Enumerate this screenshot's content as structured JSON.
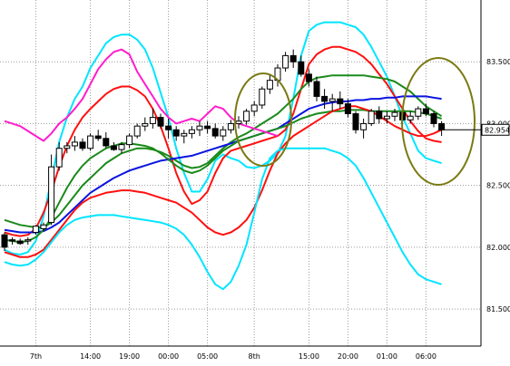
{
  "chart_data": {
    "type": "candlestick",
    "grid": true,
    "y_ticks": [
      "83.500",
      "83.000",
      "82.500",
      "82.000",
      "81.500"
    ],
    "y_tick_values": [
      83.5,
      83.0,
      82.5,
      82.0,
      81.5
    ],
    "ylim": [
      81.2,
      84.0
    ],
    "x_ticks": [
      {
        "label": "7th",
        "i": 4
      },
      {
        "label": "14:00",
        "i": 11
      },
      {
        "label": "19:00",
        "i": 16
      },
      {
        "label": "00:00",
        "i": 21
      },
      {
        "label": "05:00",
        "i": 26
      },
      {
        "label": "8th",
        "i": 32
      },
      {
        "label": "15:00",
        "i": 39
      },
      {
        "label": "20:00",
        "i": 44
      },
      {
        "label": "01:00",
        "i": 49
      },
      {
        "label": "06:00",
        "i": 54
      }
    ],
    "last_price": "82.954",
    "candles": [
      [
        82.1,
        82.12,
        81.97,
        82.0
      ],
      [
        82.06,
        82.08,
        82.02,
        82.05
      ],
      [
        82.05,
        82.07,
        82.02,
        82.03
      ],
      [
        82.05,
        82.08,
        82.02,
        82.06
      ],
      [
        82.12,
        82.18,
        82.1,
        82.17
      ],
      [
        82.15,
        82.2,
        82.13,
        82.18
      ],
      [
        82.2,
        82.75,
        82.18,
        82.65
      ],
      [
        82.65,
        82.85,
        82.62,
        82.8
      ],
      [
        82.8,
        82.85,
        82.76,
        82.82
      ],
      [
        82.82,
        82.9,
        82.78,
        82.85
      ],
      [
        82.85,
        82.88,
        82.78,
        82.8
      ],
      [
        82.8,
        82.92,
        82.78,
        82.9
      ],
      [
        82.9,
        82.95,
        82.86,
        82.88
      ],
      [
        82.88,
        82.93,
        82.8,
        82.82
      ],
      [
        82.82,
        82.85,
        82.78,
        82.79
      ],
      [
        82.79,
        82.85,
        82.76,
        82.83
      ],
      [
        82.83,
        82.92,
        82.8,
        82.9
      ],
      [
        82.9,
        83.0,
        82.88,
        82.98
      ],
      [
        82.98,
        83.05,
        82.94,
        83.0
      ],
      [
        83.0,
        83.12,
        82.96,
        83.05
      ],
      [
        83.05,
        83.08,
        82.96,
        82.98
      ],
      [
        82.98,
        83.04,
        82.88,
        82.95
      ],
      [
        82.95,
        82.98,
        82.86,
        82.9
      ],
      [
        82.9,
        82.95,
        82.84,
        82.92
      ],
      [
        82.92,
        82.98,
        82.88,
        82.95
      ],
      [
        82.95,
        83.02,
        82.9,
        82.98
      ],
      [
        82.98,
        83.02,
        82.92,
        82.96
      ],
      [
        82.96,
        83.0,
        82.88,
        82.9
      ],
      [
        82.9,
        82.98,
        82.86,
        82.95
      ],
      [
        82.95,
        83.03,
        82.92,
        83.0
      ],
      [
        83.0,
        83.06,
        82.96,
        83.02
      ],
      [
        83.02,
        83.12,
        82.99,
        83.1
      ],
      [
        83.1,
        83.18,
        83.06,
        83.15
      ],
      [
        83.15,
        83.3,
        83.12,
        83.28
      ],
      [
        83.28,
        83.4,
        83.24,
        83.35
      ],
      [
        83.35,
        83.48,
        83.3,
        83.45
      ],
      [
        83.45,
        83.58,
        83.42,
        83.55
      ],
      [
        83.55,
        83.6,
        83.45,
        83.5
      ],
      [
        83.5,
        83.55,
        83.38,
        83.4
      ],
      [
        83.4,
        83.44,
        83.3,
        83.34
      ],
      [
        83.34,
        83.38,
        83.18,
        83.22
      ],
      [
        83.22,
        83.28,
        83.12,
        83.18
      ],
      [
        83.18,
        83.24,
        83.1,
        83.2
      ],
      [
        83.2,
        83.26,
        83.12,
        83.16
      ],
      [
        83.16,
        83.2,
        83.05,
        83.08
      ],
      [
        83.08,
        83.1,
        82.92,
        82.95
      ],
      [
        82.95,
        83.04,
        82.88,
        83.0
      ],
      [
        83.0,
        83.12,
        82.98,
        83.1
      ],
      [
        83.1,
        83.14,
        83.0,
        83.04
      ],
      [
        83.04,
        83.1,
        83.0,
        83.06
      ],
      [
        83.06,
        83.12,
        83.02,
        83.09
      ],
      [
        83.09,
        83.11,
        83.01,
        83.03
      ],
      [
        83.03,
        83.1,
        83.0,
        83.06
      ],
      [
        83.06,
        83.14,
        83.03,
        83.12
      ],
      [
        83.12,
        83.16,
        83.06,
        83.08
      ],
      [
        83.08,
        83.1,
        82.97,
        83.0
      ],
      [
        83.0,
        83.02,
        82.9,
        82.95
      ]
    ],
    "series": [
      {
        "color": "#00e5ff",
        "values": [
          81.98,
          81.95,
          81.94,
          81.96,
          82.05,
          82.25,
          82.55,
          82.85,
          83.05,
          83.2,
          83.3,
          83.45,
          83.55,
          83.65,
          83.7,
          83.72,
          83.72,
          83.68,
          83.6,
          83.45,
          83.25,
          83.05,
          82.8,
          82.6,
          82.45,
          82.45,
          82.55,
          82.7,
          82.75,
          82.72,
          82.7,
          82.65,
          82.64,
          82.66,
          82.7,
          82.76,
          82.9,
          83.2,
          83.55,
          83.75,
          83.8,
          83.82,
          83.82,
          83.82,
          83.8,
          83.78,
          83.72,
          83.62,
          83.5,
          83.38,
          83.22,
          83.05,
          82.92,
          82.78,
          82.72,
          82.7,
          82.68
        ]
      },
      {
        "color": "#ff1010",
        "values": [
          82.12,
          82.1,
          82.09,
          82.1,
          82.15,
          82.28,
          82.45,
          82.65,
          82.82,
          82.95,
          83.05,
          83.12,
          83.18,
          83.24,
          83.28,
          83.3,
          83.3,
          83.27,
          83.22,
          83.12,
          82.98,
          82.8,
          82.6,
          82.45,
          82.35,
          82.38,
          82.45,
          82.6,
          82.72,
          82.78,
          82.8,
          82.82,
          82.84,
          82.86,
          82.88,
          82.9,
          82.95,
          83.08,
          83.28,
          83.48,
          83.56,
          83.6,
          83.62,
          83.62,
          83.6,
          83.58,
          83.54,
          83.48,
          83.4,
          83.32,
          83.22,
          83.12,
          83.02,
          82.94,
          82.88,
          82.86,
          82.85
        ]
      },
      {
        "color": "#1a8a1a",
        "values": [
          82.22,
          82.2,
          82.18,
          82.17,
          82.16,
          82.16,
          82.2,
          82.26,
          82.34,
          82.42,
          82.5,
          82.56,
          82.62,
          82.68,
          82.72,
          82.76,
          82.78,
          82.8,
          82.8,
          82.79,
          82.77,
          82.74,
          82.7,
          82.66,
          82.64,
          82.65,
          82.68,
          82.74,
          82.8,
          82.85,
          82.89,
          82.92,
          82.96,
          83.0,
          83.04,
          83.08,
          83.14,
          83.2,
          83.28,
          83.34,
          83.37,
          83.38,
          83.39,
          83.39,
          83.39,
          83.39,
          83.39,
          83.38,
          83.37,
          83.36,
          83.34,
          83.3,
          83.26,
          83.2,
          83.14,
          83.1,
          83.06
        ]
      },
      {
        "color": "#0a14e0",
        "values": [
          82.14,
          82.13,
          82.12,
          82.12,
          82.12,
          82.13,
          82.16,
          82.2,
          82.26,
          82.32,
          82.38,
          82.44,
          82.48,
          82.52,
          82.56,
          82.59,
          82.62,
          82.64,
          82.66,
          82.68,
          82.7,
          82.71,
          82.72,
          82.73,
          82.74,
          82.76,
          82.78,
          82.8,
          82.82,
          82.84,
          82.86,
          82.88,
          82.9,
          82.92,
          82.94,
          82.96,
          83.0,
          83.04,
          83.08,
          83.12,
          83.14,
          83.16,
          83.17,
          83.18,
          83.18,
          83.19,
          83.19,
          83.2,
          83.2,
          83.21,
          83.21,
          83.22,
          83.22,
          83.22,
          83.22,
          83.21,
          83.2
        ]
      },
      {
        "color": "#1a8a1a",
        "values": [
          82.06,
          82.05,
          82.04,
          82.05,
          82.08,
          82.14,
          82.24,
          82.36,
          82.48,
          82.58,
          82.66,
          82.72,
          82.76,
          82.8,
          82.82,
          82.84,
          82.84,
          82.83,
          82.82,
          82.8,
          82.76,
          82.71,
          82.66,
          82.62,
          82.6,
          82.62,
          82.66,
          82.72,
          82.78,
          82.82,
          82.86,
          82.88,
          82.9,
          82.92,
          82.94,
          82.96,
          82.98,
          83.01,
          83.04,
          83.06,
          83.08,
          83.09,
          83.1,
          83.1,
          83.11,
          83.11,
          83.11,
          83.1,
          83.1,
          83.1,
          83.1,
          83.1,
          83.1,
          83.09,
          83.08,
          83.06,
          83.04
        ]
      },
      {
        "color": "#ff1010",
        "values": [
          81.96,
          81.94,
          81.92,
          81.92,
          81.94,
          81.98,
          82.06,
          82.14,
          82.22,
          82.3,
          82.36,
          82.4,
          82.42,
          82.44,
          82.45,
          82.46,
          82.46,
          82.45,
          82.44,
          82.42,
          82.4,
          82.38,
          82.36,
          82.32,
          82.28,
          82.22,
          82.16,
          82.12,
          82.1,
          82.12,
          82.16,
          82.22,
          82.32,
          82.46,
          82.62,
          82.76,
          82.84,
          82.9,
          82.94,
          82.98,
          83.02,
          83.06,
          83.1,
          83.12,
          83.14,
          83.14,
          83.12,
          83.1,
          83.06,
          83.02,
          82.98,
          82.95,
          82.92,
          82.9,
          82.9,
          82.92,
          82.95
        ]
      },
      {
        "color": "#00e5ff",
        "values": [
          81.88,
          81.86,
          81.85,
          81.86,
          81.9,
          81.96,
          82.04,
          82.12,
          82.18,
          82.22,
          82.24,
          82.25,
          82.26,
          82.26,
          82.26,
          82.25,
          82.24,
          82.23,
          82.22,
          82.21,
          82.2,
          82.18,
          82.15,
          82.1,
          82.02,
          81.92,
          81.8,
          81.7,
          81.66,
          81.72,
          81.85,
          82.02,
          82.28,
          82.55,
          82.72,
          82.78,
          82.8,
          82.8,
          82.8,
          82.8,
          82.8,
          82.8,
          82.78,
          82.76,
          82.72,
          82.66,
          82.56,
          82.44,
          82.32,
          82.2,
          82.08,
          81.96,
          81.86,
          81.78,
          81.74,
          81.72,
          81.7
        ]
      },
      {
        "color": "#ff1dcc",
        "values": [
          83.02,
          83.0,
          82.98,
          82.94,
          82.9,
          82.86,
          82.92,
          83.0,
          83.05,
          83.12,
          83.2,
          83.32,
          83.44,
          83.52,
          83.58,
          83.6,
          83.56,
          83.42,
          83.32,
          83.22,
          83.12,
          83.05,
          83.0,
          83.02,
          83.04,
          83.02,
          83.08,
          83.14,
          83.12,
          83.05,
          83.0,
          82.98,
          82.96,
          82.94,
          82.92,
          82.9
        ]
      }
    ]
  }
}
